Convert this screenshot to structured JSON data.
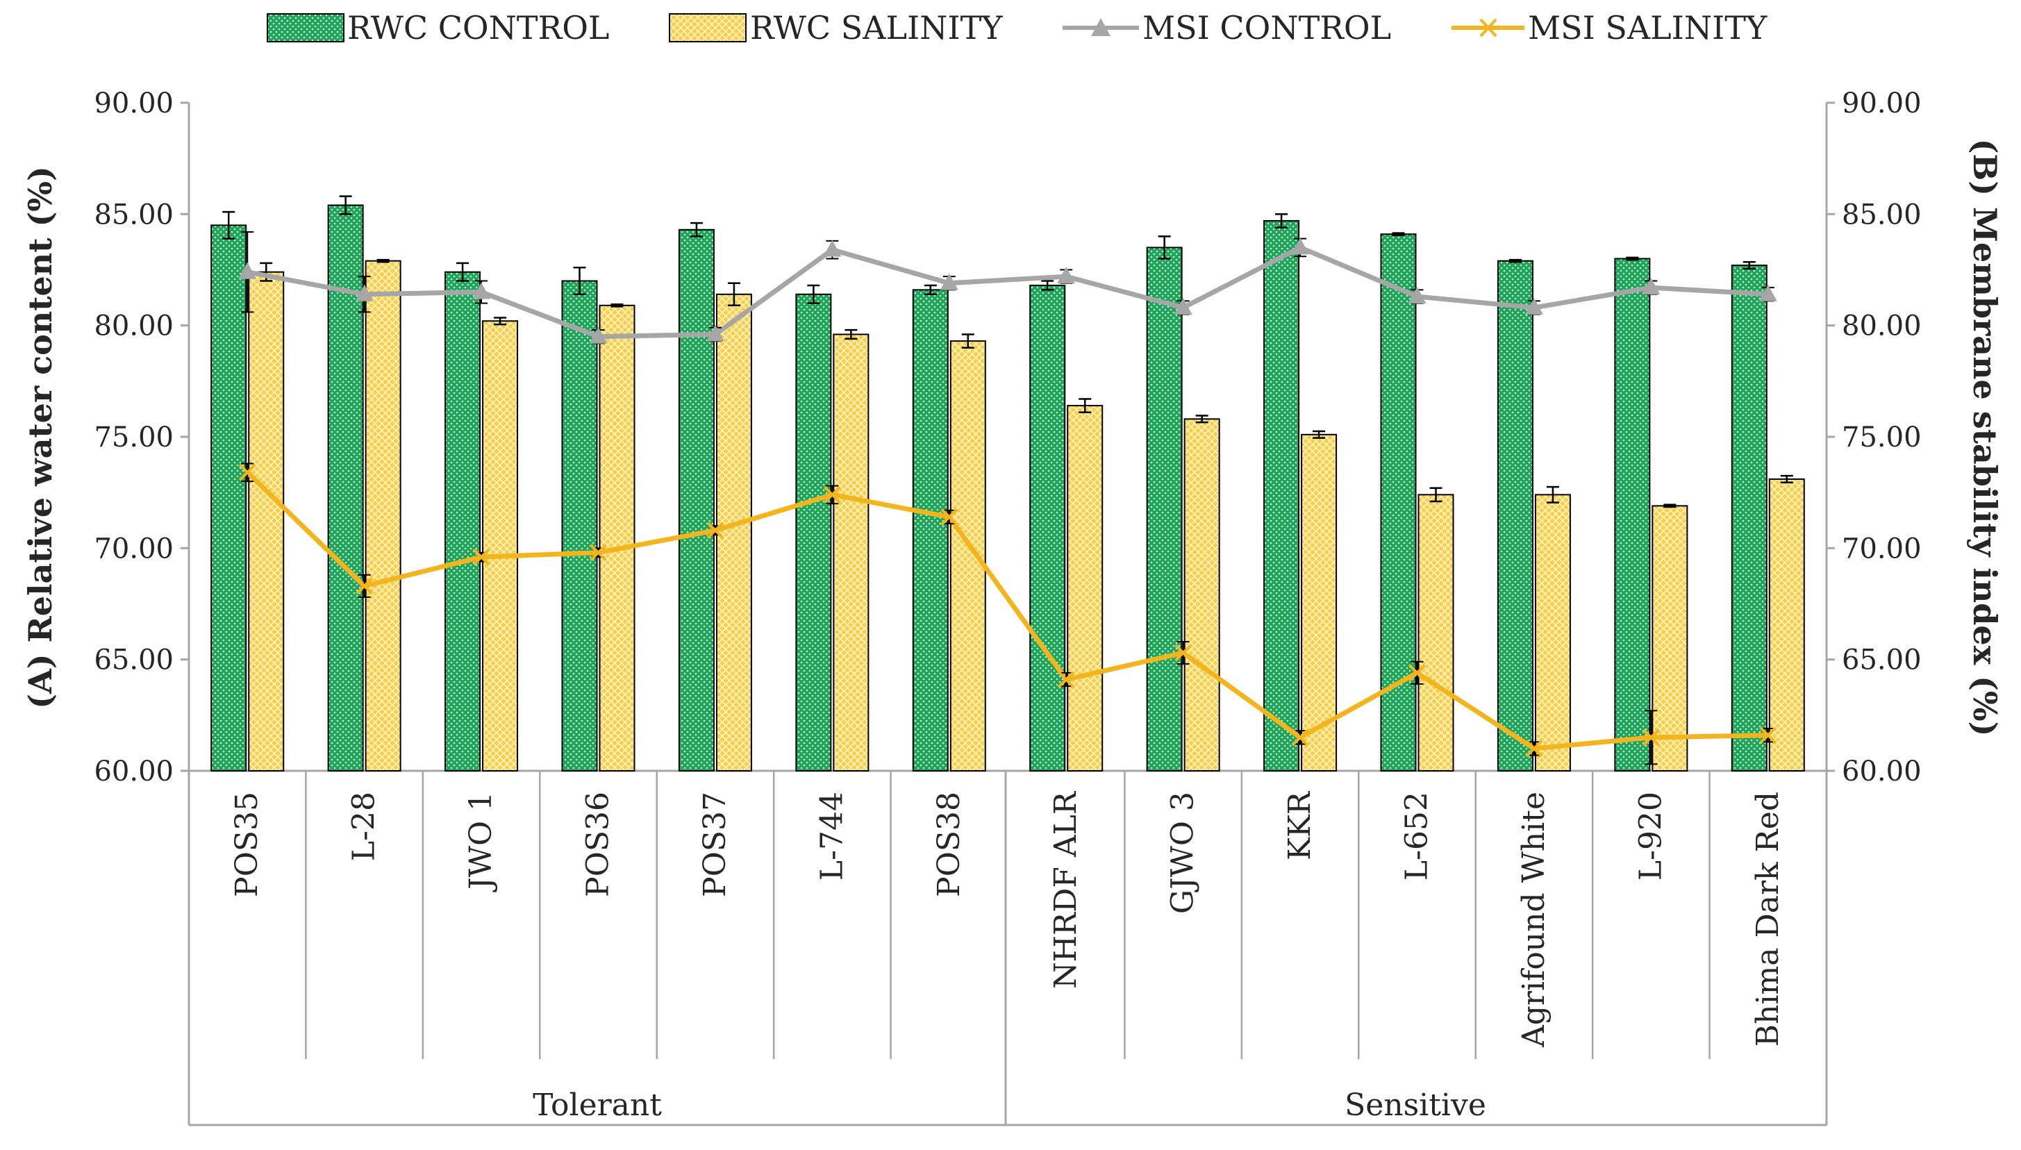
{
  "chart_data": {
    "type": "bar",
    "categories": [
      "POS35",
      "L-28",
      "JWO 1",
      "POS36",
      "POS37",
      "L-744",
      "POS38",
      "NHRDF ALR",
      "GJWO 3",
      "KKR",
      "L-652",
      "Agrifound White",
      "L-920",
      "Bhima Dark Red"
    ],
    "groups": [
      {
        "label": "Tolerant",
        "count": 7
      },
      {
        "label": "Sensitive",
        "count": 7
      }
    ],
    "series": [
      {
        "name": "RWC CONTROL",
        "type": "bar",
        "axis": "left",
        "color": "#1fa55a",
        "values": [
          84.5,
          85.4,
          82.4,
          82.0,
          84.3,
          81.4,
          81.6,
          81.8,
          83.5,
          84.7,
          84.1,
          82.9,
          83.0,
          82.7
        ],
        "errors": [
          0.6,
          0.4,
          0.4,
          0.6,
          0.3,
          0.4,
          0.2,
          0.2,
          0.5,
          0.3,
          0.05,
          0.05,
          0.05,
          0.15
        ]
      },
      {
        "name": "RWC SALINITY",
        "type": "bar",
        "axis": "left",
        "color": "#f6cf4c",
        "values": [
          82.4,
          82.9,
          80.2,
          80.9,
          81.4,
          79.6,
          79.3,
          76.4,
          75.8,
          75.1,
          72.4,
          72.4,
          71.9,
          73.1
        ],
        "errors": [
          0.4,
          0.05,
          0.15,
          0.05,
          0.5,
          0.2,
          0.3,
          0.3,
          0.15,
          0.15,
          0.3,
          0.35,
          0.05,
          0.15
        ]
      },
      {
        "name": "MSI CONTROL",
        "type": "line",
        "axis": "right",
        "color": "#a6a6a6",
        "marker": "triangle",
        "values": [
          82.4,
          81.4,
          81.5,
          79.5,
          79.6,
          83.4,
          81.9,
          82.2,
          80.8,
          83.5,
          81.3,
          80.8,
          81.7,
          81.4
        ],
        "errors": [
          1.8,
          0.8,
          0.5,
          0.3,
          0.3,
          0.4,
          0.3,
          0.3,
          0.3,
          0.4,
          0.3,
          0.3,
          0.3,
          0.3
        ]
      },
      {
        "name": "MSI SALINITY",
        "type": "line",
        "axis": "right",
        "color": "#f2b51e",
        "marker": "x",
        "values": [
          73.4,
          68.3,
          69.6,
          69.8,
          70.8,
          72.4,
          71.4,
          64.1,
          65.3,
          61.5,
          64.4,
          61.0,
          61.5,
          61.6
        ],
        "errors": [
          0.4,
          0.5,
          0.2,
          0.2,
          0.2,
          0.4,
          0.3,
          0.3,
          0.5,
          0.3,
          0.5,
          0.3,
          1.2,
          0.3
        ]
      }
    ],
    "ylabel_left": "(A) Relative water content (%)",
    "ylabel_right": "(B) Membrane stability index (%)",
    "ylim_left": [
      60,
      90
    ],
    "ylim_right": [
      60,
      90
    ],
    "yticks": [
      "60.00",
      "65.00",
      "70.00",
      "75.00",
      "80.00",
      "85.00",
      "90.00"
    ],
    "legend_position": "top",
    "grid": false
  }
}
